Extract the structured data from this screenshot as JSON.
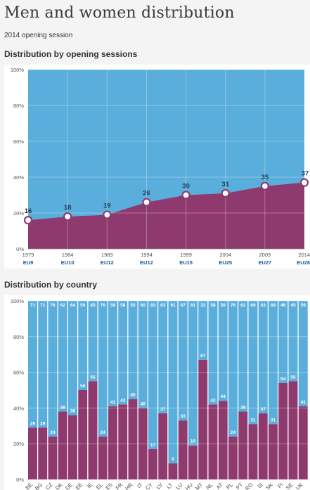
{
  "page": {
    "title": "Men and women distribution",
    "subtitle": "2014 opening session"
  },
  "sections": [
    {
      "title": "Distribution by opening sessions"
    },
    {
      "title": "Distribution by country"
    }
  ],
  "colors": {
    "women": "#8e3a6e",
    "men": "#5aaedb",
    "accent_label": "#1a5a9a",
    "marker_stroke": "#8e3a6e"
  },
  "chart_data": [
    {
      "type": "area",
      "stacked": true,
      "ylim": [
        0,
        100
      ],
      "y_ticks": [
        "0%",
        "20%",
        "40%",
        "60%",
        "80%",
        "100%"
      ],
      "categories": [
        "1979",
        "1984",
        "1989",
        "1994",
        "1999",
        "2004",
        "2009",
        "2014"
      ],
      "sublabels": [
        "EU9",
        "EU10",
        "EU12",
        "EU12",
        "EU15",
        "EU25",
        "EU27",
        "EU28"
      ],
      "series": [
        {
          "values": [
            16,
            18,
            19,
            26,
            30,
            31,
            35,
            37
          ]
        },
        {
          "values": [
            84,
            82,
            81,
            74,
            70,
            69,
            65,
            63
          ]
        }
      ],
      "grid": true
    },
    {
      "type": "bar",
      "stacked": true,
      "ylim": [
        0,
        100
      ],
      "y_ticks": [
        "0%",
        "20%",
        "40%",
        "60%",
        "80%",
        "100%"
      ],
      "categories": [
        "BE",
        "BG",
        "CZ",
        "DK",
        "DE",
        "EE",
        "IE",
        "EL",
        "ES",
        "FR",
        "HR",
        "IT",
        "CY",
        "LV",
        "LT",
        "LU",
        "HU",
        "MT",
        "NL",
        "AT",
        "PL",
        "PT",
        "RO",
        "SI",
        "SK",
        "FI",
        "SE",
        "UK"
      ],
      "series": [
        {
          "values": [
            29,
            29,
            24,
            38,
            36,
            50,
            55,
            24,
            41,
            42,
            45,
            40,
            17,
            37,
            9,
            33,
            19,
            67,
            42,
            44,
            24,
            38,
            31,
            37,
            31,
            54,
            55,
            41
          ]
        },
        {
          "values": [
            71,
            71,
            76,
            62,
            64,
            50,
            45,
            76,
            59,
            58,
            55,
            60,
            83,
            63,
            91,
            67,
            81,
            33,
            58,
            56,
            76,
            62,
            69,
            63,
            69,
            46,
            45,
            59
          ]
        }
      ],
      "grid": true
    }
  ]
}
